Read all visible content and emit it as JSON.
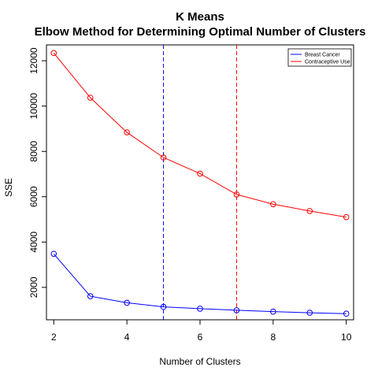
{
  "chart_data": {
    "type": "line",
    "title": "K Means",
    "subtitle": "Elbow Method for Determining Optimal Number of Clusters",
    "xlabel": "Number of Clusters",
    "ylabel": "SSE",
    "x": [
      2,
      3,
      4,
      5,
      6,
      7,
      8,
      9,
      10
    ],
    "xlim": [
      1.8,
      10.2
    ],
    "ylim": [
      570,
      12700
    ],
    "xticks": [
      2,
      4,
      6,
      8,
      10
    ],
    "yticks": [
      2000,
      4000,
      6000,
      8000,
      10000,
      12000
    ],
    "series": [
      {
        "name": "Breast Cancer",
        "color": "#0000FF",
        "values": [
          3480,
          1610,
          1320,
          1140,
          1060,
          990,
          930,
          880,
          840
        ],
        "marker": "open-circle"
      },
      {
        "name": "Contraceptive Use",
        "color": "#FF0000",
        "values": [
          12340,
          10370,
          8840,
          7730,
          7020,
          6100,
          5670,
          5370,
          5100
        ],
        "marker": "open-circle"
      }
    ],
    "vlines": [
      {
        "x": 5,
        "color": "#0000FF",
        "style": "dashed"
      },
      {
        "x": 7,
        "color": "#FF0000",
        "style": "dashed"
      }
    ],
    "legend_position": "top-right",
    "grid": false
  }
}
